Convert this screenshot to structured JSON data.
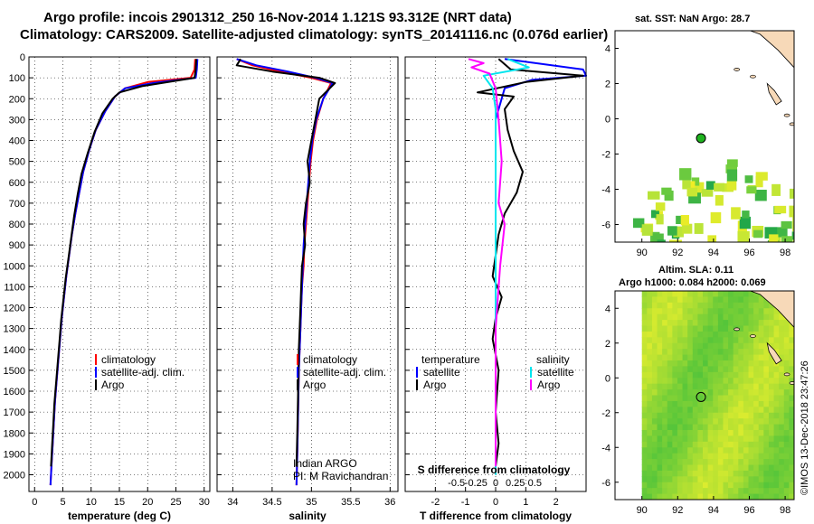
{
  "title_line1": "Argo profile: incois 2901312_250 16-Nov-2014 1.121S 93.312E (NRT data)",
  "title_line2": "Climatology: CARS2009. Satellite-adjusted climatology: synTS_20141116.nc (0.076d earlier)",
  "watermark": "©IMOS 13-Dec-2018 23:47:26",
  "credit_line1": "Indian ARGO",
  "credit_line2": "PI: M Ravichandran",
  "colors": {
    "climatology": "#ff0000",
    "satellite": "#0000ff",
    "argo": "#000000",
    "sat_salinity": "#00e5ee",
    "argo_salinity": "#ff00ff",
    "marker": "#1fb31f",
    "land": "#f7d9b8"
  },
  "chart_data": [
    {
      "id": "temperature",
      "type": "line",
      "xlabel": "temperature (deg C)",
      "ylabel": "",
      "xlim": [
        -1,
        31
      ],
      "ylim": [
        2080,
        0
      ],
      "xticks": [
        "0",
        "5",
        "10",
        "15",
        "20",
        "25",
        "30"
      ],
      "xtick_values": [
        0,
        5,
        10,
        15,
        20,
        25,
        30
      ],
      "yticks": [
        "0",
        "100",
        "200",
        "300",
        "400",
        "500",
        "600",
        "700",
        "800",
        "900",
        "1000",
        "1100",
        "1200",
        "1300",
        "1400",
        "1500",
        "1600",
        "1700",
        "1800",
        "1900",
        "2000"
      ],
      "ytick_values": [
        0,
        100,
        200,
        300,
        400,
        500,
        600,
        700,
        800,
        900,
        1000,
        1100,
        1200,
        1300,
        1400,
        1500,
        1600,
        1700,
        1800,
        1900,
        2000
      ],
      "legend": [
        "climatology",
        "satellite-adj. clim.",
        "Argo"
      ],
      "series": [
        {
          "name": "climatology",
          "color": "#ff0000",
          "x": [
            28.4,
            28.3,
            27.6,
            20,
            16,
            14.2,
            12.5,
            10.8,
            9.6,
            8.6,
            7.9,
            7.2,
            6.6,
            6.1,
            5.6,
            5.2,
            4.8,
            4.5,
            4.2,
            3.9,
            3.6,
            3.4,
            3.2,
            3.0,
            2.8
          ],
          "y": [
            10,
            60,
            100,
            120,
            150,
            190,
            260,
            350,
            450,
            550,
            650,
            750,
            850,
            950,
            1050,
            1150,
            1250,
            1350,
            1450,
            1550,
            1650,
            1750,
            1850,
            1950,
            2050
          ]
        },
        {
          "name": "satellite-adj. clim.",
          "color": "#0000ff",
          "x": [
            28.8,
            28.7,
            28.5,
            21,
            16,
            14.2,
            12.5,
            10.8,
            9.6,
            8.6,
            7.9,
            7.2,
            6.6,
            6.1,
            5.6,
            5.2,
            4.8,
            4.5,
            4.2,
            3.9,
            3.6,
            3.4,
            3.2,
            3.0,
            2.8
          ],
          "y": [
            10,
            60,
            100,
            125,
            150,
            190,
            260,
            350,
            450,
            550,
            650,
            750,
            850,
            950,
            1050,
            1150,
            1250,
            1350,
            1450,
            1550,
            1650,
            1750,
            1850,
            1950,
            2050
          ]
        },
        {
          "name": "Argo",
          "color": "#000000",
          "x": [
            28.6,
            28.5,
            28.3,
            19,
            15,
            13.8,
            12.0,
            10.6,
            9.4,
            8.3,
            7.6,
            7.0,
            6.5,
            6.0,
            5.5,
            5.1,
            4.7,
            4.4,
            4.1,
            3.8,
            3.5,
            3.3,
            3.1,
            2.9
          ],
          "y": [
            10,
            60,
            100,
            140,
            170,
            200,
            270,
            360,
            460,
            560,
            660,
            760,
            860,
            960,
            1060,
            1160,
            1260,
            1360,
            1460,
            1560,
            1660,
            1760,
            1860,
            1960
          ]
        }
      ]
    },
    {
      "id": "salinity",
      "type": "line",
      "xlabel": "salinity",
      "xlim": [
        33.8,
        36.1
      ],
      "ylim": [
        2080,
        0
      ],
      "xticks": [
        "34",
        "34.5",
        "35",
        "35.5",
        "36"
      ],
      "xtick_values": [
        34,
        34.5,
        35,
        35.5,
        36
      ],
      "legend": [
        "climatology",
        "satellite-adj. clim.",
        "Argo"
      ],
      "series": [
        {
          "name": "climatology",
          "color": "#ff0000",
          "x": [
            34.05,
            34.25,
            34.6,
            35.0,
            35.25,
            35.15,
            35.07,
            35.02,
            34.99,
            34.97,
            34.95,
            34.93,
            34.91,
            34.9,
            34.88,
            34.87,
            34.86,
            34.85,
            34.84,
            34.83,
            34.82,
            34.81
          ],
          "y": [
            10,
            40,
            70,
            100,
            125,
            200,
            300,
            400,
            500,
            600,
            700,
            800,
            900,
            1000,
            1100,
            1200,
            1300,
            1400,
            1500,
            1700,
            1900,
            2050
          ]
        },
        {
          "name": "satellite-adj. clim.",
          "color": "#0000ff",
          "x": [
            34.05,
            34.3,
            34.7,
            35.05,
            35.27,
            35.15,
            35.06,
            35.01,
            34.98,
            34.96,
            34.94,
            34.92,
            34.9,
            34.89,
            34.88,
            34.87,
            34.86,
            34.85,
            34.84,
            34.83,
            34.82,
            34.81
          ],
          "y": [
            10,
            40,
            70,
            100,
            125,
            200,
            300,
            400,
            500,
            600,
            700,
            800,
            900,
            1000,
            1100,
            1200,
            1300,
            1400,
            1500,
            1700,
            1900,
            2050
          ]
        },
        {
          "name": "Argo",
          "color": "#000000",
          "x": [
            34.1,
            34.05,
            34.5,
            35.1,
            35.3,
            35.1,
            35.05,
            35.0,
            34.95,
            34.98,
            34.93,
            34.9,
            34.92,
            34.88,
            34.87,
            34.86,
            34.84,
            34.83,
            34.82,
            34.81
          ],
          "y": [
            10,
            40,
            70,
            100,
            125,
            200,
            300,
            400,
            500,
            600,
            700,
            800,
            900,
            1000,
            1100,
            1200,
            1400,
            1600,
            1800,
            1960
          ]
        }
      ]
    },
    {
      "id": "differences",
      "type": "line",
      "xlabel": "T difference from climatology",
      "xlabel_top": "S difference from climatology",
      "xlim": [
        -3,
        3
      ],
      "ylim": [
        2080,
        0
      ],
      "xticks": [
        "-2",
        "-1",
        "0",
        "1",
        "2"
      ],
      "xtick_values": [
        -2,
        -1,
        0,
        1,
        2
      ],
      "xticks_s": [
        "-0.5",
        "-0.25",
        "0",
        "0.25",
        "0.5"
      ],
      "xtick_s_values": [
        -1.3,
        -0.65,
        0,
        0.65,
        1.3
      ],
      "legend_t_title": "temperature",
      "legend_s_title": "salinity",
      "legend_t": [
        "satellite",
        "Argo"
      ],
      "legend_s": [
        "satellite",
        "Argo"
      ],
      "series": [
        {
          "name": "T satellite",
          "color": "#0000ff",
          "x": [
            0.3,
            2.9,
            3.0,
            1.2,
            0.3,
            0.0,
            0.0,
            0.0,
            0.0
          ],
          "y": [
            10,
            60,
            90,
            110,
            150,
            300,
            800,
            1500,
            2000
          ]
        },
        {
          "name": "T Argo",
          "color": "#000000",
          "x": [
            0.1,
            0.5,
            2.9,
            1.0,
            -0.6,
            0.6,
            0.3,
            0.4,
            0.6,
            0.9,
            0.7,
            0.3,
            0.1,
            0.0,
            -0.1,
            0.2,
            0.0,
            -0.1,
            0.1,
            0.0,
            0.1,
            0.0
          ],
          "y": [
            10,
            60,
            90,
            120,
            170,
            190,
            250,
            350,
            450,
            550,
            650,
            750,
            850,
            950,
            1050,
            1150,
            1250,
            1350,
            1500,
            1700,
            1850,
            1960
          ]
        },
        {
          "name": "S satellite",
          "color": "#00e5ee",
          "x": [
            0.4,
            1.1,
            -0.4,
            -0.1,
            0.0,
            0.0,
            0.0,
            0.0,
            0.0
          ],
          "y": [
            10,
            50,
            90,
            150,
            250,
            400,
            900,
            1500,
            2000
          ]
        },
        {
          "name": "S Argo",
          "color": "#ff00ff",
          "x": [
            -0.9,
            -0.4,
            -0.8,
            -0.2,
            0.0,
            0.1,
            0.2,
            0.1,
            0.3,
            0.15,
            0.0,
            0.0,
            0.0,
            0.0
          ],
          "y": [
            10,
            30,
            50,
            80,
            150,
            300,
            500,
            700,
            800,
            1000,
            1300,
            1500,
            1800,
            1960
          ]
        }
      ]
    },
    {
      "id": "sst_map",
      "type": "heatmap",
      "title": "sat. SST: NaN Argo: 28.7",
      "xlim": [
        88.5,
        98.5
      ],
      "ylim": [
        -7,
        5
      ],
      "xticks": [
        "90",
        "92",
        "94",
        "96",
        "98"
      ],
      "xtick_values": [
        90,
        92,
        94,
        96,
        98
      ],
      "yticks": [
        "4",
        "2",
        "0",
        "-2",
        "-4",
        "-6"
      ],
      "ytick_values": [
        4,
        2,
        0,
        -2,
        -4,
        -6
      ],
      "marker": {
        "lon": 93.3,
        "lat": -1.1
      }
    },
    {
      "id": "sla_map",
      "type": "heatmap",
      "title_line1": "Altim. SLA: 0.11",
      "title_line2": "Argo h1000: 0.084 h2000: 0.069",
      "xlim": [
        88.5,
        98.5
      ],
      "ylim": [
        -7,
        5
      ],
      "xticks": [
        "90",
        "92",
        "94",
        "96",
        "98"
      ],
      "xtick_values": [
        90,
        92,
        94,
        96,
        98
      ],
      "yticks": [
        "4",
        "2",
        "0",
        "-2",
        "-4",
        "-6"
      ],
      "ytick_values": [
        4,
        2,
        0,
        -2,
        -4,
        -6
      ],
      "marker": {
        "lon": 93.3,
        "lat": -1.1
      }
    }
  ]
}
